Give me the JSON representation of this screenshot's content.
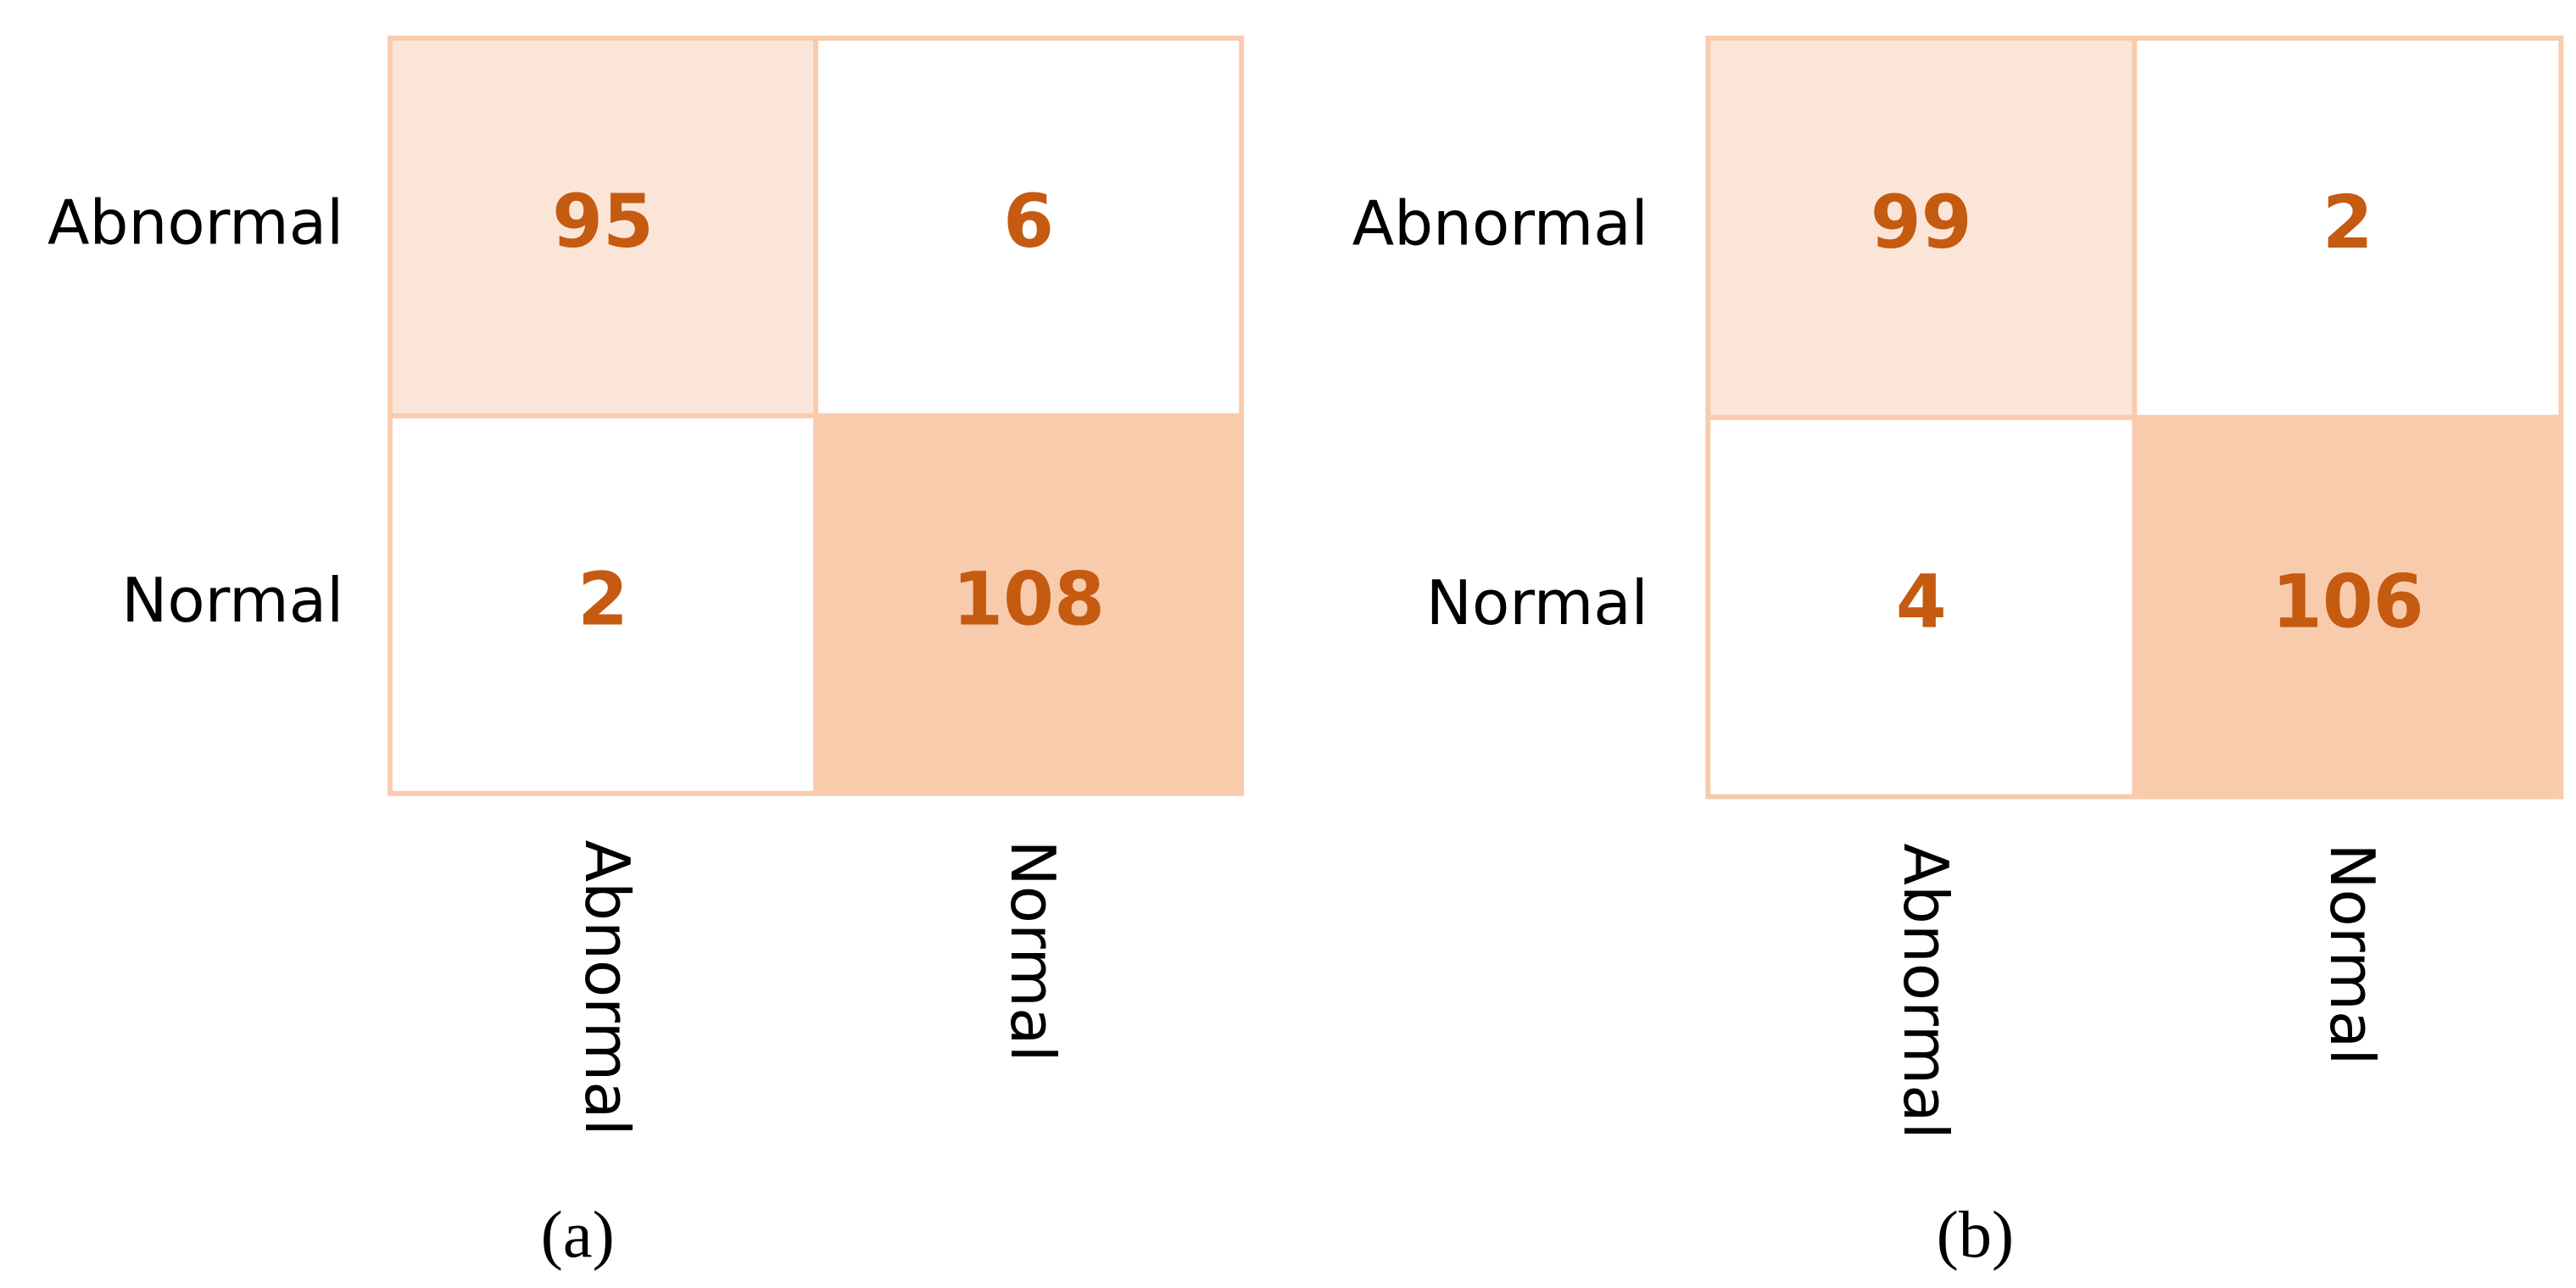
{
  "chart_data": [
    {
      "type": "heatmap",
      "caption": "(a)",
      "rows": [
        "Abnormal",
        "Normal"
      ],
      "columns": [
        "Abnormal",
        "Normal"
      ],
      "values": [
        [
          95,
          6
        ],
        [
          2,
          108
        ]
      ],
      "cell_colors": [
        [
          "#fbe5d9",
          "#ffffff"
        ],
        [
          "#ffffff",
          "#f8cbad"
        ]
      ]
    },
    {
      "type": "heatmap",
      "caption": "(b)",
      "rows": [
        "Abnormal",
        "Normal"
      ],
      "columns": [
        "Abnormal",
        "Normal"
      ],
      "values": [
        [
          99,
          2
        ],
        [
          4,
          106
        ]
      ],
      "cell_colors": [
        [
          "#fbe5d9",
          "#ffffff"
        ],
        [
          "#ffffff",
          "#f8cbad"
        ]
      ]
    }
  ]
}
